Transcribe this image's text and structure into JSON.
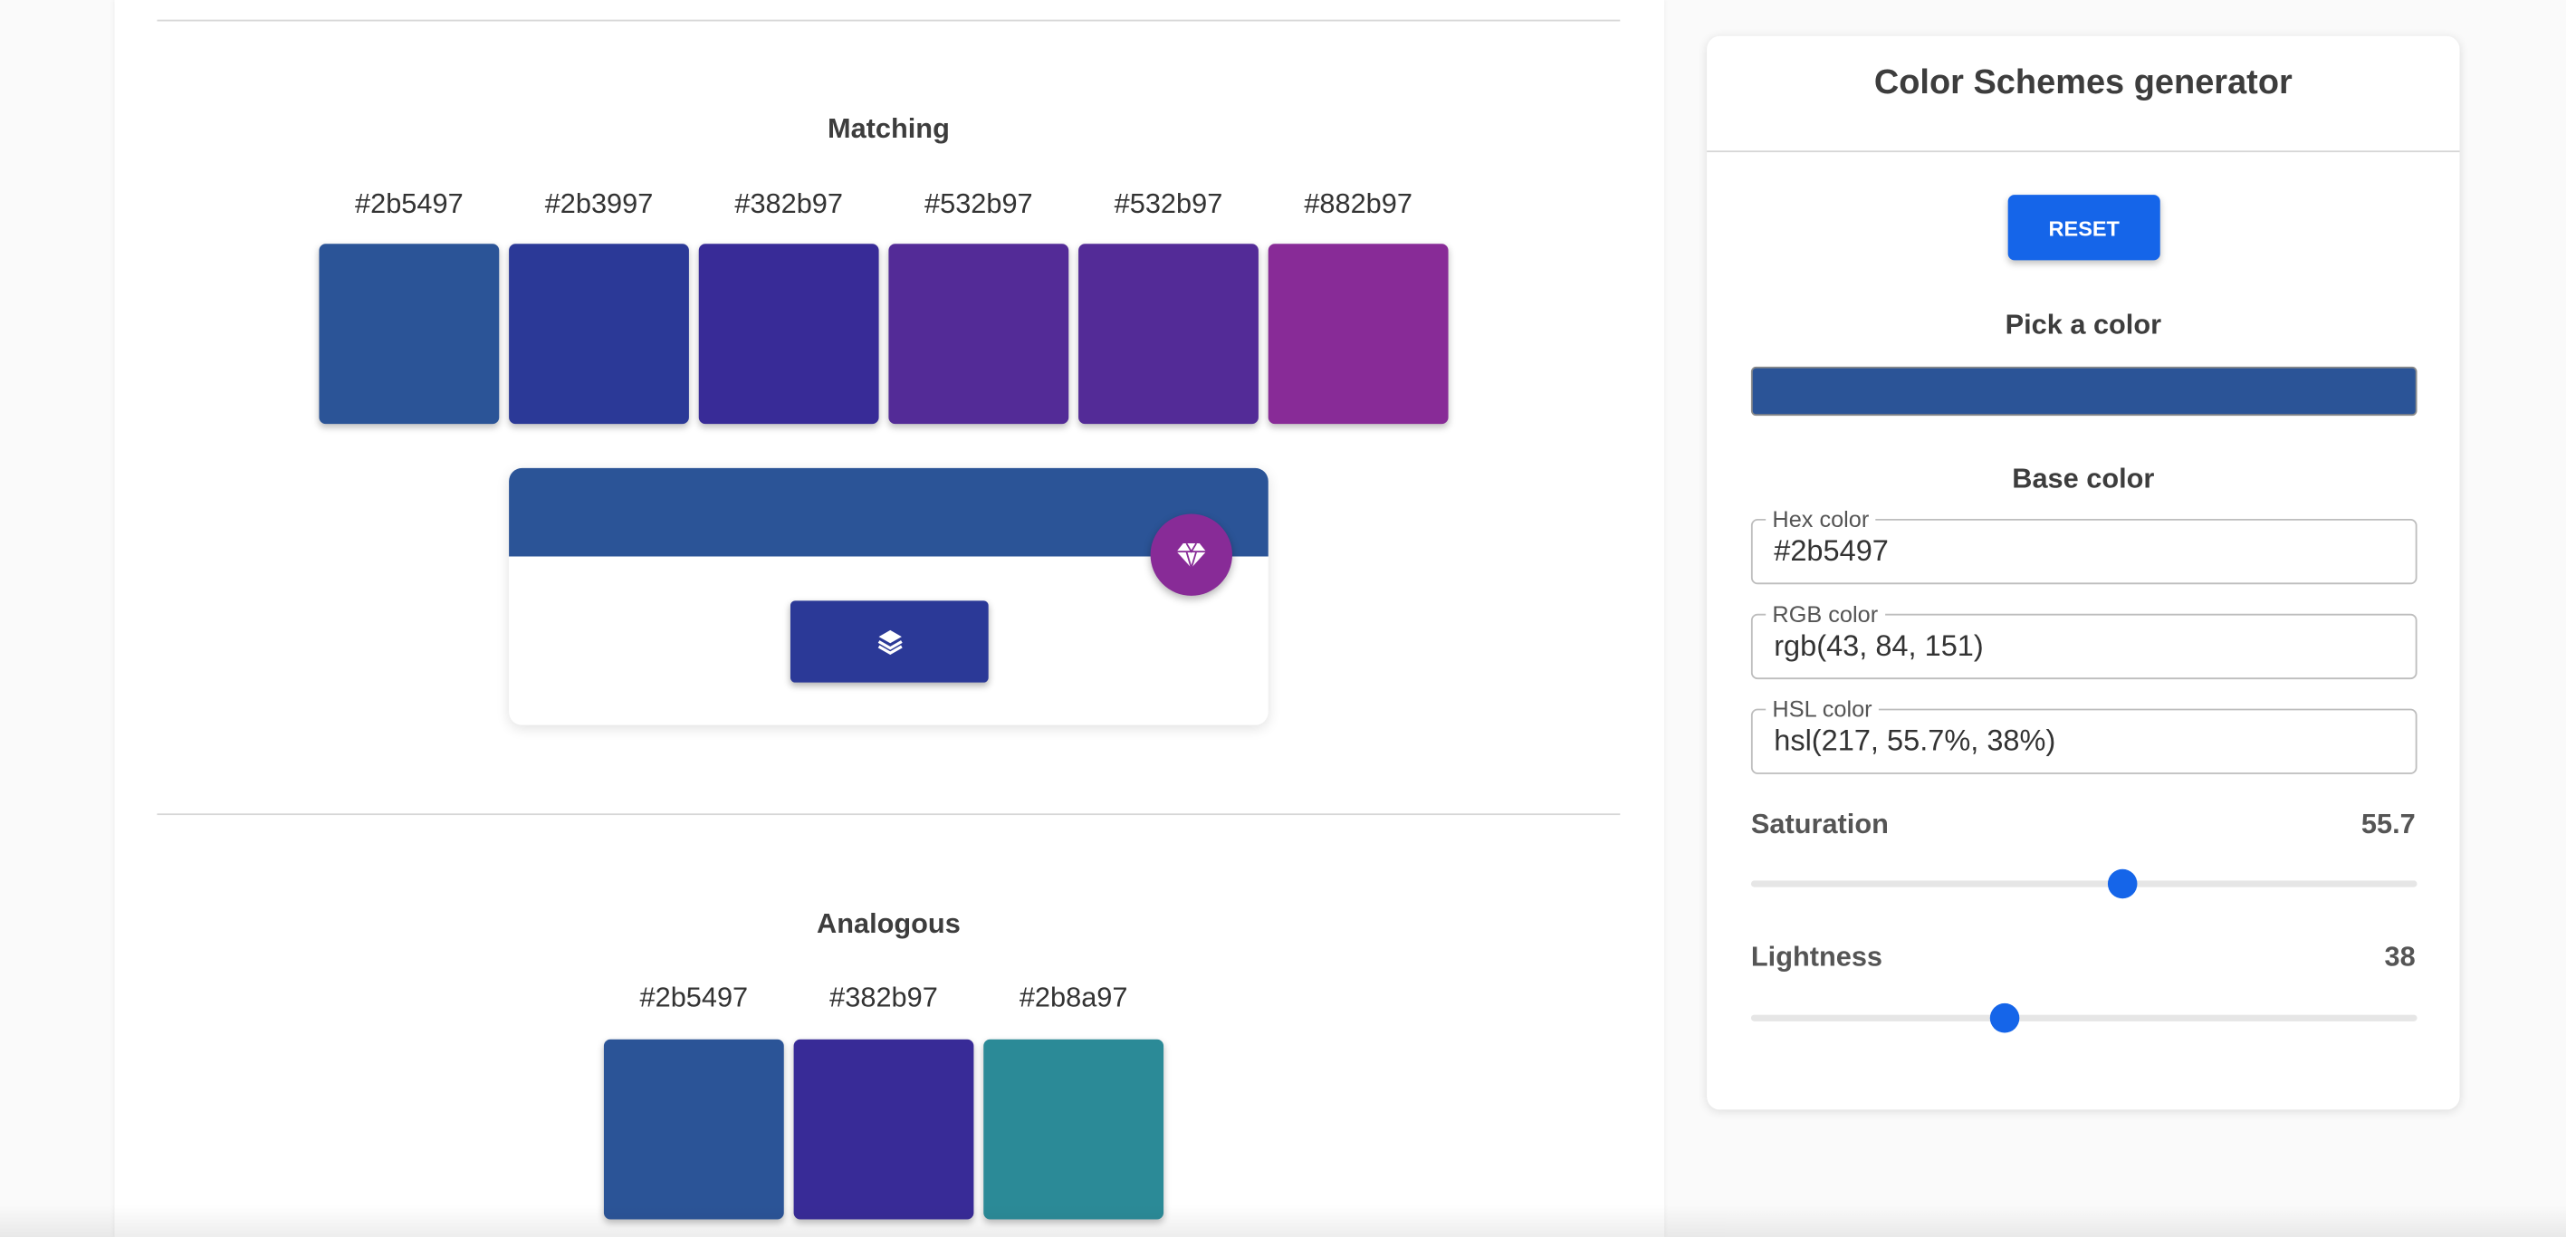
{
  "matching": {
    "title": "Matching",
    "swatches": [
      "#2b5497",
      "#2b3997",
      "#382b97",
      "#532b97",
      "#532b97",
      "#882b97"
    ]
  },
  "analogous": {
    "title": "Analogous",
    "swatches": [
      "#2b5497",
      "#382b97",
      "#2b8a97"
    ]
  },
  "sidebar": {
    "title": "Color Schemes generator",
    "reset": "RESET",
    "pick_label": "Pick a color",
    "base_label": "Base color",
    "fields": [
      {
        "label": "Hex color",
        "value": "#2b5497"
      },
      {
        "label": "RGB color",
        "value": "rgb(43, 84, 151)"
      },
      {
        "label": "HSL color",
        "value": "hsl(217, 55.7%, 38%)"
      }
    ],
    "saturation": {
      "label": "Saturation",
      "value": 55.7
    },
    "lightness": {
      "label": "Lightness",
      "value": 38
    }
  }
}
